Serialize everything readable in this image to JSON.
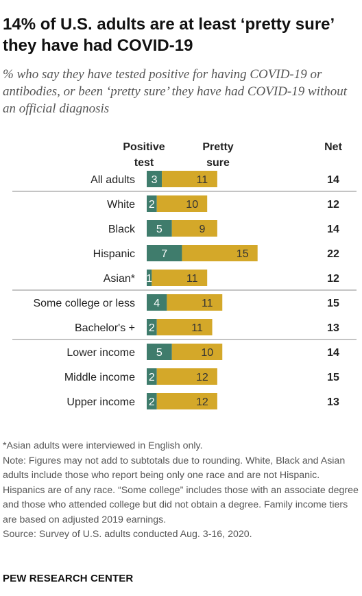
{
  "title": "14% of U.S. adults are at least ‘pretty sure’ they have had COVID-19",
  "subtitle": "% who say they have tested positive for having COVID-19 or antibodies, or been ‘pretty sure’ they have had COVID-19 without an official diagnosis",
  "colors": {
    "positive": "#3f7c6c",
    "pretty": "#d4a829",
    "divider": "#888888"
  },
  "chart_data": {
    "type": "bar",
    "stacked": true,
    "orientation": "horizontal",
    "headers": {
      "positive": [
        "Positive",
        "test"
      ],
      "pretty": [
        "Pretty",
        "sure"
      ],
      "net": "Net"
    },
    "categories": [
      "All adults",
      "White",
      "Black",
      "Hispanic",
      "Asian*",
      "Some college or less",
      "Bachelor's +",
      "Lower income",
      "Middle income",
      "Upper income"
    ],
    "series": [
      {
        "name": "Positive test",
        "values": [
          3,
          2,
          5,
          7,
          1,
          4,
          2,
          5,
          2,
          2
        ]
      },
      {
        "name": "Pretty sure",
        "values": [
          11,
          10,
          9,
          15,
          11,
          11,
          11,
          10,
          12,
          12
        ]
      }
    ],
    "net": [
      14,
      12,
      14,
      22,
      12,
      15,
      13,
      14,
      15,
      13
    ],
    "groups": [
      [
        0
      ],
      [
        1,
        2,
        3,
        4
      ],
      [
        5,
        6
      ],
      [
        7,
        8,
        9
      ]
    ]
  },
  "notes": [
    "*Asian adults were interviewed in English only.",
    "Note: Figures may not add to subtotals due to rounding. White, Black and Asian adults include those who report being only one race and are not Hispanic. Hispanics are of any race. “Some college” includes those with an associate degree and those who attended college but did not obtain a degree. Family income tiers are based on adjusted 2019 earnings.",
    "Source: Survey of U.S. adults conducted Aug. 3-16, 2020."
  ],
  "brand": "PEW RESEARCH CENTER"
}
